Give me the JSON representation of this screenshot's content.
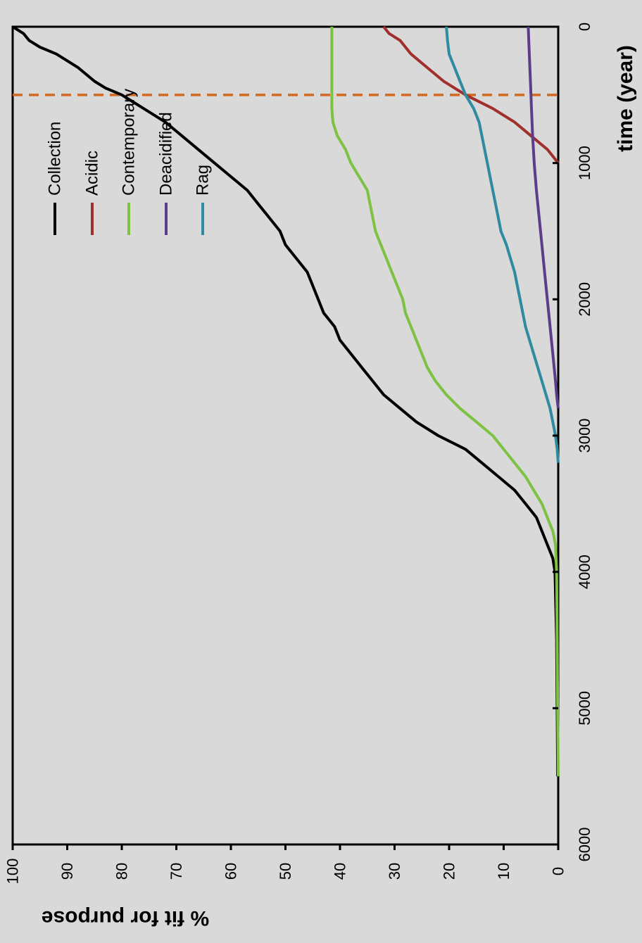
{
  "chart_data": {
    "type": "line",
    "title": "",
    "xlabel": "time (year)",
    "ylabel": "% fit for purpose",
    "xlim": [
      0,
      6000
    ],
    "ylim": [
      0,
      100
    ],
    "x_ticks": [
      "0",
      "1000",
      "2000",
      "3000",
      "4000",
      "5000",
      "6000"
    ],
    "y_ticks": [
      "0",
      "10",
      "20",
      "30",
      "40",
      "50",
      "60",
      "70",
      "80",
      "90",
      "100"
    ],
    "grid": false,
    "legend_position": "top-left",
    "reference_line": {
      "x": 500,
      "color": "#d2691e",
      "style": "dashed"
    },
    "series": [
      {
        "name": "Collection",
        "color": "#000000",
        "points": [
          [
            0,
            100
          ],
          [
            50,
            98
          ],
          [
            100,
            97
          ],
          [
            150,
            95
          ],
          [
            200,
            92
          ],
          [
            300,
            88
          ],
          [
            400,
            85
          ],
          [
            450,
            83
          ],
          [
            500,
            80
          ],
          [
            550,
            78
          ],
          [
            600,
            76
          ],
          [
            700,
            72
          ],
          [
            800,
            69
          ],
          [
            900,
            66
          ],
          [
            1000,
            63
          ],
          [
            1100,
            60
          ],
          [
            1200,
            57
          ],
          [
            1300,
            55
          ],
          [
            1400,
            53
          ],
          [
            1500,
            51
          ],
          [
            1600,
            50
          ],
          [
            1700,
            48
          ],
          [
            1800,
            46
          ],
          [
            1900,
            45
          ],
          [
            2000,
            44
          ],
          [
            2100,
            43
          ],
          [
            2200,
            41
          ],
          [
            2300,
            40
          ],
          [
            2400,
            38
          ],
          [
            2500,
            36
          ],
          [
            2600,
            34
          ],
          [
            2700,
            32
          ],
          [
            2800,
            29
          ],
          [
            2900,
            26
          ],
          [
            3000,
            22
          ],
          [
            3100,
            17
          ],
          [
            3200,
            14
          ],
          [
            3300,
            11
          ],
          [
            3400,
            8
          ],
          [
            3500,
            6
          ],
          [
            3600,
            4
          ],
          [
            3700,
            3
          ],
          [
            3800,
            2
          ],
          [
            3900,
            1
          ],
          [
            4000,
            0.6
          ],
          [
            4500,
            0.3
          ],
          [
            5000,
            0.2
          ],
          [
            5500,
            0.1
          ]
        ]
      },
      {
        "name": "Acidic",
        "color": "#a0302c",
        "points": [
          [
            0,
            32
          ],
          [
            50,
            31
          ],
          [
            100,
            29
          ],
          [
            150,
            28
          ],
          [
            200,
            27
          ],
          [
            300,
            24
          ],
          [
            400,
            21
          ],
          [
            500,
            17
          ],
          [
            600,
            12
          ],
          [
            700,
            8
          ],
          [
            800,
            5
          ],
          [
            900,
            2
          ],
          [
            950,
            1
          ],
          [
            1000,
            0
          ]
        ]
      },
      {
        "name": "Contemporary",
        "color": "#7dc242",
        "points": [
          [
            0,
            41.5
          ],
          [
            200,
            41.5
          ],
          [
            400,
            41.5
          ],
          [
            600,
            41.5
          ],
          [
            700,
            41.3
          ],
          [
            800,
            40.5
          ],
          [
            900,
            39
          ],
          [
            1000,
            38
          ],
          [
            1100,
            36.5
          ],
          [
            1200,
            35
          ],
          [
            1300,
            34.5
          ],
          [
            1400,
            34
          ],
          [
            1500,
            33.5
          ],
          [
            1600,
            32.5
          ],
          [
            1700,
            31.5
          ],
          [
            1800,
            30.5
          ],
          [
            1900,
            29.5
          ],
          [
            2000,
            28.5
          ],
          [
            2100,
            28
          ],
          [
            2200,
            27
          ],
          [
            2300,
            26
          ],
          [
            2400,
            25
          ],
          [
            2500,
            24
          ],
          [
            2600,
            22.5
          ],
          [
            2700,
            20.5
          ],
          [
            2800,
            18
          ],
          [
            2900,
            15
          ],
          [
            3000,
            12
          ],
          [
            3100,
            10
          ],
          [
            3200,
            8
          ],
          [
            3300,
            6
          ],
          [
            3400,
            4.5
          ],
          [
            3500,
            3
          ],
          [
            3600,
            2
          ],
          [
            3700,
            1
          ],
          [
            3800,
            0.5
          ],
          [
            4000,
            0.3
          ],
          [
            4500,
            0.2
          ],
          [
            5000,
            0.1
          ],
          [
            5500,
            0
          ]
        ]
      },
      {
        "name": "Deacidified",
        "color": "#5b3d8a",
        "points": [
          [
            0,
            5.5
          ],
          [
            200,
            5.3
          ],
          [
            400,
            5.1
          ],
          [
            600,
            4.9
          ],
          [
            800,
            4.7
          ],
          [
            1000,
            4.4
          ],
          [
            1200,
            4
          ],
          [
            1400,
            3.5
          ],
          [
            1600,
            3
          ],
          [
            1800,
            2.5
          ],
          [
            2000,
            2
          ],
          [
            2200,
            1.5
          ],
          [
            2400,
            1
          ],
          [
            2600,
            0.5
          ],
          [
            2700,
            0.3
          ],
          [
            2800,
            0
          ]
        ]
      },
      {
        "name": "Rag",
        "color": "#2e8ba0",
        "points": [
          [
            0,
            20.5
          ],
          [
            100,
            20.3
          ],
          [
            200,
            20
          ],
          [
            300,
            19
          ],
          [
            400,
            18
          ],
          [
            500,
            17
          ],
          [
            600,
            15.5
          ],
          [
            700,
            14.5
          ],
          [
            800,
            14
          ],
          [
            900,
            13.5
          ],
          [
            1000,
            13
          ],
          [
            1200,
            12
          ],
          [
            1400,
            11
          ],
          [
            1500,
            10.5
          ],
          [
            1600,
            9.5
          ],
          [
            1800,
            8
          ],
          [
            2000,
            7
          ],
          [
            2200,
            6
          ],
          [
            2400,
            4.5
          ],
          [
            2600,
            3
          ],
          [
            2800,
            1.5
          ],
          [
            2900,
            1
          ],
          [
            3000,
            0.5
          ],
          [
            3100,
            0.2
          ],
          [
            3200,
            0
          ]
        ]
      }
    ]
  }
}
